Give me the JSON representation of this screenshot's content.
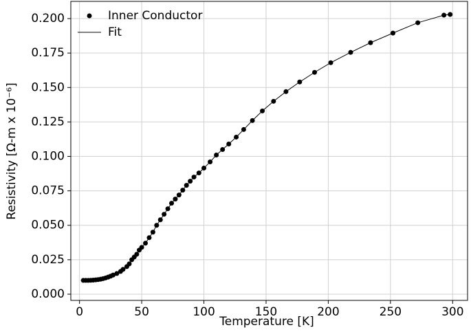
{
  "chart_data": {
    "type": "scatter-line",
    "xlabel": "Temperature [K]",
    "ylabel": "Resistivity [Ω-m x 10⁻⁶]",
    "x": [
      3,
      5,
      7,
      9,
      11,
      13,
      15,
      17,
      19,
      21,
      23,
      25,
      27,
      30,
      33,
      35,
      38,
      40,
      42,
      44,
      46,
      48,
      50,
      53,
      56,
      59,
      62,
      65,
      68,
      71,
      74,
      77,
      80,
      83,
      86,
      89,
      92,
      96,
      100,
      105,
      110,
      115,
      120,
      126,
      132,
      139,
      147,
      156,
      166,
      177,
      189,
      202,
      218,
      234,
      252,
      272,
      293,
      298
    ],
    "series": [
      {
        "name": "Inner Conductor",
        "color": "#000000",
        "style": "marker",
        "values": [
          0.01,
          0.01,
          0.01,
          0.0101,
          0.0102,
          0.0104,
          0.0106,
          0.0109,
          0.0113,
          0.0118,
          0.0124,
          0.0131,
          0.0139,
          0.015,
          0.0165,
          0.018,
          0.02,
          0.022,
          0.025,
          0.027,
          0.029,
          0.032,
          0.034,
          0.037,
          0.041,
          0.045,
          0.05,
          0.054,
          0.058,
          0.062,
          0.066,
          0.069,
          0.072,
          0.0755,
          0.079,
          0.082,
          0.085,
          0.088,
          0.0915,
          0.096,
          0.101,
          0.105,
          0.109,
          0.114,
          0.1195,
          0.126,
          0.133,
          0.14,
          0.147,
          0.154,
          0.161,
          0.168,
          0.1755,
          0.1825,
          0.1895,
          0.197,
          0.2025,
          0.203
        ]
      },
      {
        "name": "Fit",
        "color": "#000000",
        "style": "line",
        "values": [
          0.01,
          0.01,
          0.01,
          0.0101,
          0.0102,
          0.0104,
          0.0106,
          0.0109,
          0.0113,
          0.0118,
          0.0124,
          0.0131,
          0.0139,
          0.015,
          0.0165,
          0.018,
          0.02,
          0.022,
          0.025,
          0.027,
          0.029,
          0.032,
          0.034,
          0.037,
          0.041,
          0.045,
          0.05,
          0.054,
          0.058,
          0.062,
          0.066,
          0.069,
          0.072,
          0.0755,
          0.079,
          0.082,
          0.085,
          0.088,
          0.0915,
          0.096,
          0.101,
          0.105,
          0.109,
          0.114,
          0.1195,
          0.126,
          0.133,
          0.14,
          0.147,
          0.154,
          0.161,
          0.168,
          0.1755,
          0.1825,
          0.1895,
          0.197,
          0.2025,
          0.203
        ]
      }
    ],
    "xlim": [
      -7,
      312
    ],
    "ylim": [
      -0.0045,
      0.2125
    ],
    "xticks": [
      0,
      50,
      100,
      150,
      200,
      250,
      300
    ],
    "yticks": [
      {
        "value": 0,
        "label": "0.000"
      },
      0.025,
      {
        "value": 0.05,
        "label": "0.050"
      },
      0.075,
      {
        "value": 0.1,
        "label": "0.100"
      },
      0.125,
      {
        "value": 0.15,
        "label": "0.150"
      },
      0.175,
      {
        "value": 0.2,
        "label": "0.200"
      }
    ],
    "grid": true,
    "legend": "upper-left"
  }
}
